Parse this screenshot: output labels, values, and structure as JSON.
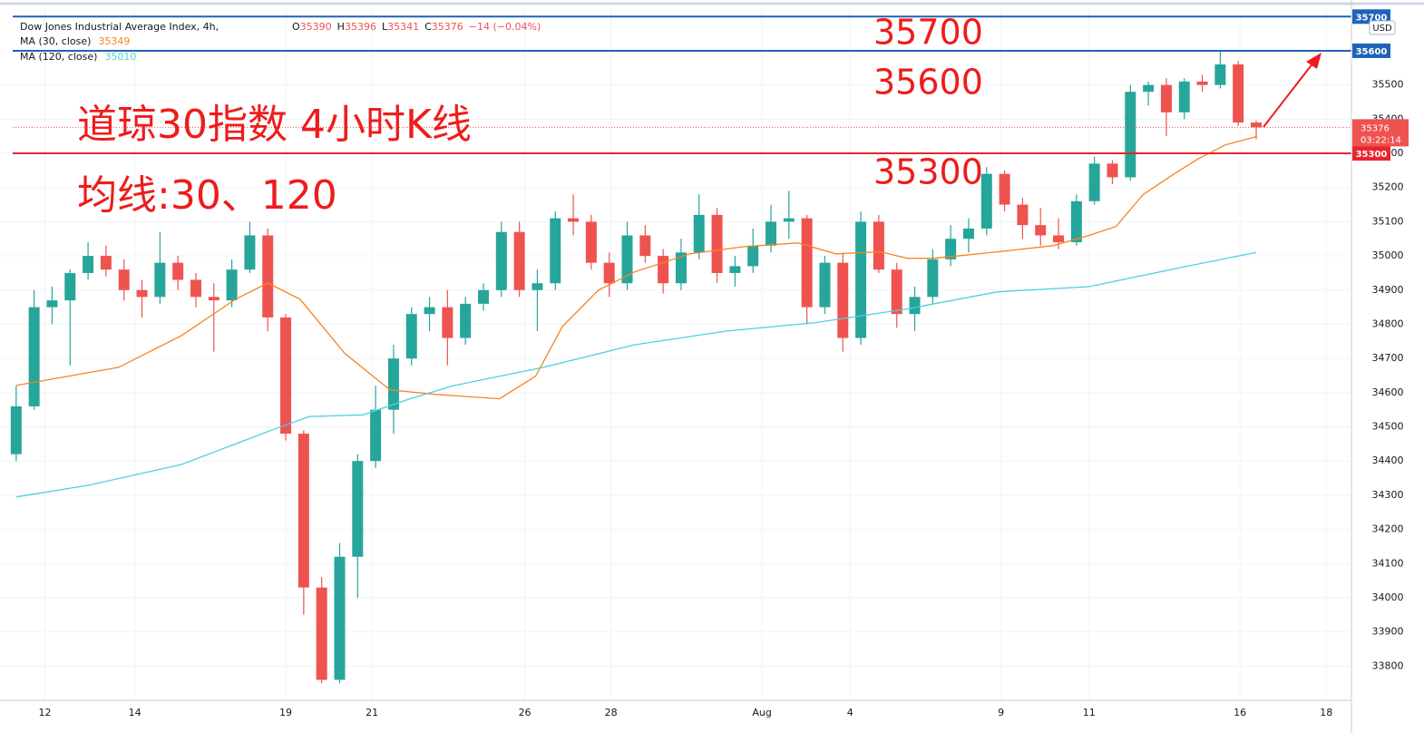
{
  "chart_data": {
    "type": "candlestick",
    "title": "Dow Jones Industrial Average Index, 4h,",
    "ohlc_labels": [
      "O",
      "H",
      "L",
      "C"
    ],
    "change": "−14 (−0.04%)",
    "currency": "USD",
    "countdown": "03:22:14",
    "up_color": "#26a69a",
    "down_color": "#ef5350",
    "open": [
      34420,
      34560,
      34850,
      34870,
      34950,
      35000,
      34960,
      34900,
      34880,
      34980,
      34930,
      34880,
      34870,
      34960,
      35060,
      34820,
      34480,
      34030,
      33760,
      34120,
      34400,
      34550,
      34700,
      34830,
      34850,
      34760,
      34860,
      34900,
      35070,
      34900,
      34920,
      35110,
      35100,
      34980,
      34920,
      35060,
      35000,
      34920,
      35010,
      35120,
      34950,
      34970,
      35030,
      35100,
      35110,
      34850,
      34980,
      34760,
      35100,
      34960,
      34830,
      34880,
      34990,
      35050,
      35080,
      35240,
      35150,
      35090,
      35060,
      35040,
      35160,
      35270,
      35230,
      35480,
      35500,
      35420,
      35510,
      35500,
      35560,
      35390
    ],
    "high": [
      34620,
      34900,
      34910,
      34960,
      35040,
      35030,
      34990,
      34930,
      35070,
      35000,
      34950,
      34920,
      34990,
      35100,
      35080,
      34830,
      34490,
      34060,
      34160,
      34420,
      34620,
      34740,
      34850,
      34880,
      34900,
      34880,
      34920,
      35100,
      35100,
      34960,
      35130,
      35180,
      35120,
      35010,
      35100,
      35090,
      35020,
      35050,
      35180,
      35140,
      35000,
      35080,
      35150,
      35190,
      35120,
      35000,
      35010,
      35130,
      35120,
      34980,
      34910,
      35020,
      35090,
      35110,
      35260,
      35250,
      35170,
      35140,
      35110,
      35180,
      35290,
      35280,
      35500,
      35510,
      35520,
      35520,
      35530,
      35600,
      35570,
      35396
    ],
    "low": [
      34400,
      34550,
      34800,
      34680,
      34930,
      34940,
      34870,
      34820,
      34860,
      34900,
      34850,
      34720,
      34850,
      34950,
      34780,
      34460,
      33950,
      33750,
      33750,
      34000,
      34380,
      34480,
      34680,
      34780,
      34680,
      34740,
      34840,
      34880,
      34880,
      34780,
      34900,
      35060,
      34960,
      34880,
      34900,
      34980,
      34890,
      34900,
      34990,
      34920,
      34910,
      34950,
      35010,
      35050,
      34800,
      34830,
      34720,
      34740,
      34950,
      34790,
      34780,
      34860,
      34970,
      35010,
      35060,
      35130,
      35050,
      35030,
      35020,
      35030,
      35150,
      35210,
      35220,
      35440,
      35350,
      35400,
      35480,
      35490,
      35380,
      35341
    ],
    "close": [
      34560,
      34850,
      34870,
      34950,
      35000,
      34960,
      34900,
      34880,
      34980,
      34930,
      34880,
      34870,
      34960,
      35060,
      34820,
      34480,
      34030,
      33760,
      34120,
      34400,
      34550,
      34700,
      34830,
      34850,
      34760,
      34860,
      34900,
      35070,
      34900,
      34920,
      35110,
      35100,
      34980,
      34920,
      35060,
      35000,
      34920,
      35010,
      35120,
      34950,
      34970,
      35030,
      35100,
      35110,
      34850,
      34980,
      34760,
      35100,
      34960,
      34830,
      34880,
      34990,
      35050,
      35080,
      35240,
      35150,
      35090,
      35060,
      35040,
      35160,
      35270,
      35230,
      35480,
      35500,
      35420,
      35510,
      35500,
      35560,
      35390,
      35376
    ],
    "series": [
      {
        "name": "MA (30, close)",
        "color": "#f7831f",
        "x": [
          0,
          5.7,
          9.2,
          12.2,
          14,
          15.8,
          18.3,
          20.8,
          23.3,
          26.9,
          28.9,
          30.4,
          32.4,
          34.4,
          37.5,
          40.5,
          43.5,
          45.6,
          48.1,
          49.6,
          51.1,
          54.6,
          57.7,
          59.7,
          61.2,
          62.7,
          64.2,
          65.8,
          67.3,
          69
        ],
        "values": [
          34621,
          34674,
          34767,
          34873,
          34921,
          34873,
          34714,
          34608,
          34595,
          34582,
          34648,
          34794,
          34900,
          34953,
          35006,
          35027,
          35038,
          35006,
          35012,
          34993,
          34993,
          35012,
          35030,
          35060,
          35086,
          35179,
          35232,
          35285,
          35325,
          35349
        ]
      },
      {
        "name": "MA (120, close)",
        "color": "#4dd0e1",
        "x": [
          0,
          4.1,
          9.2,
          14.2,
          16.3,
          19.3,
          21.8,
          24.3,
          29.4,
          34.4,
          39.5,
          44.5,
          49.6,
          54.6,
          59.7,
          64.7,
          69
        ],
        "values": [
          34295,
          34330,
          34390,
          34490,
          34530,
          34535,
          34580,
          34620,
          34675,
          34740,
          34780,
          34805,
          34845,
          34895,
          34910,
          34965,
          35010
        ]
      }
    ],
    "xlim": [
      -0.9,
      74.3
    ],
    "ylim": [
      33700,
      35722
    ],
    "yticks": [
      33800,
      33900,
      34000,
      34100,
      34200,
      34300,
      34400,
      34500,
      34600,
      34700,
      34800,
      34900,
      35000,
      35100,
      35200,
      35300,
      35400,
      35500
    ],
    "xticks": [
      {
        "value": 1.6,
        "label": "12"
      },
      {
        "value": 6.6,
        "label": "14"
      },
      {
        "value": 15,
        "label": "19"
      },
      {
        "value": 19.8,
        "label": "21"
      },
      {
        "value": 28.3,
        "label": "26"
      },
      {
        "value": 33.1,
        "label": "28"
      },
      {
        "value": 41.5,
        "label": "Aug"
      },
      {
        "value": 46.4,
        "label": "4"
      },
      {
        "value": 54.8,
        "label": "9"
      },
      {
        "value": 59.7,
        "label": "11"
      },
      {
        "value": 68.1,
        "label": "16"
      },
      {
        "value": 72.9,
        "label": "18"
      }
    ],
    "grid": true,
    "hlines": [
      {
        "value": 35700,
        "color": "#1e63b8"
      },
      {
        "value": 35600,
        "color": "#1e63b8"
      },
      {
        "value": 35300,
        "color": "#e8242c"
      }
    ],
    "annotations": [
      {
        "text": "35700"
      },
      {
        "text": "35600"
      },
      {
        "text": "35300"
      },
      {
        "text": "道琼30指数 4小时K线"
      },
      {
        "text": "均线:30、120"
      }
    ]
  }
}
